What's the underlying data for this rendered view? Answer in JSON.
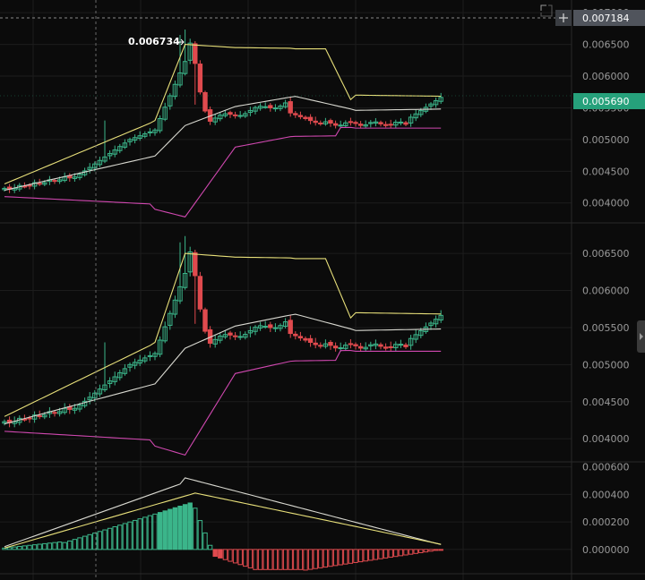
{
  "colors": {
    "background": "#0b0b0b",
    "grid": "#1c1c1c",
    "up": "#3bb58a",
    "down": "#e04a4e",
    "band_upper": "#e8e07a",
    "band_mid": "#d8d8d0",
    "band_lower": "#d048b0",
    "badge_price": "#26a17b",
    "badge_cross": "#50545c"
  },
  "icons": {
    "crosshair": "plus-icon",
    "corner": "corner-bracket-icon",
    "scroll": "chevron-right-icon"
  },
  "crosshair_price_label": "0.007184",
  "chart_data": [
    {
      "type": "candlestick",
      "panel": "main",
      "title": "",
      "ylim": [
        0.0037,
        0.0072
      ],
      "yticks": [
        "0.007000",
        "0.006500",
        "0.006000",
        "0.005500",
        "0.005000",
        "0.004500",
        "0.004000"
      ],
      "last_price_label": "0.005690",
      "high_marker_label": "0.006734",
      "bands": [
        "upper",
        "middle",
        "lower"
      ],
      "grid": true
    },
    {
      "type": "candlestick",
      "panel": "second",
      "title": "",
      "ylim": [
        0.0037,
        0.0069
      ],
      "yticks": [
        "0.006500",
        "0.006000",
        "0.005500",
        "0.005000",
        "0.004500",
        "0.004000"
      ],
      "bands": [
        "upper",
        "middle",
        "lower"
      ],
      "grid": true
    },
    {
      "type": "histogram",
      "panel": "macd",
      "title": "",
      "ylim": [
        -0.00017,
        0.00063
      ],
      "yticks": [
        "0.000600",
        "0.000400",
        "0.000200",
        "0.000000"
      ],
      "grid": true
    }
  ]
}
